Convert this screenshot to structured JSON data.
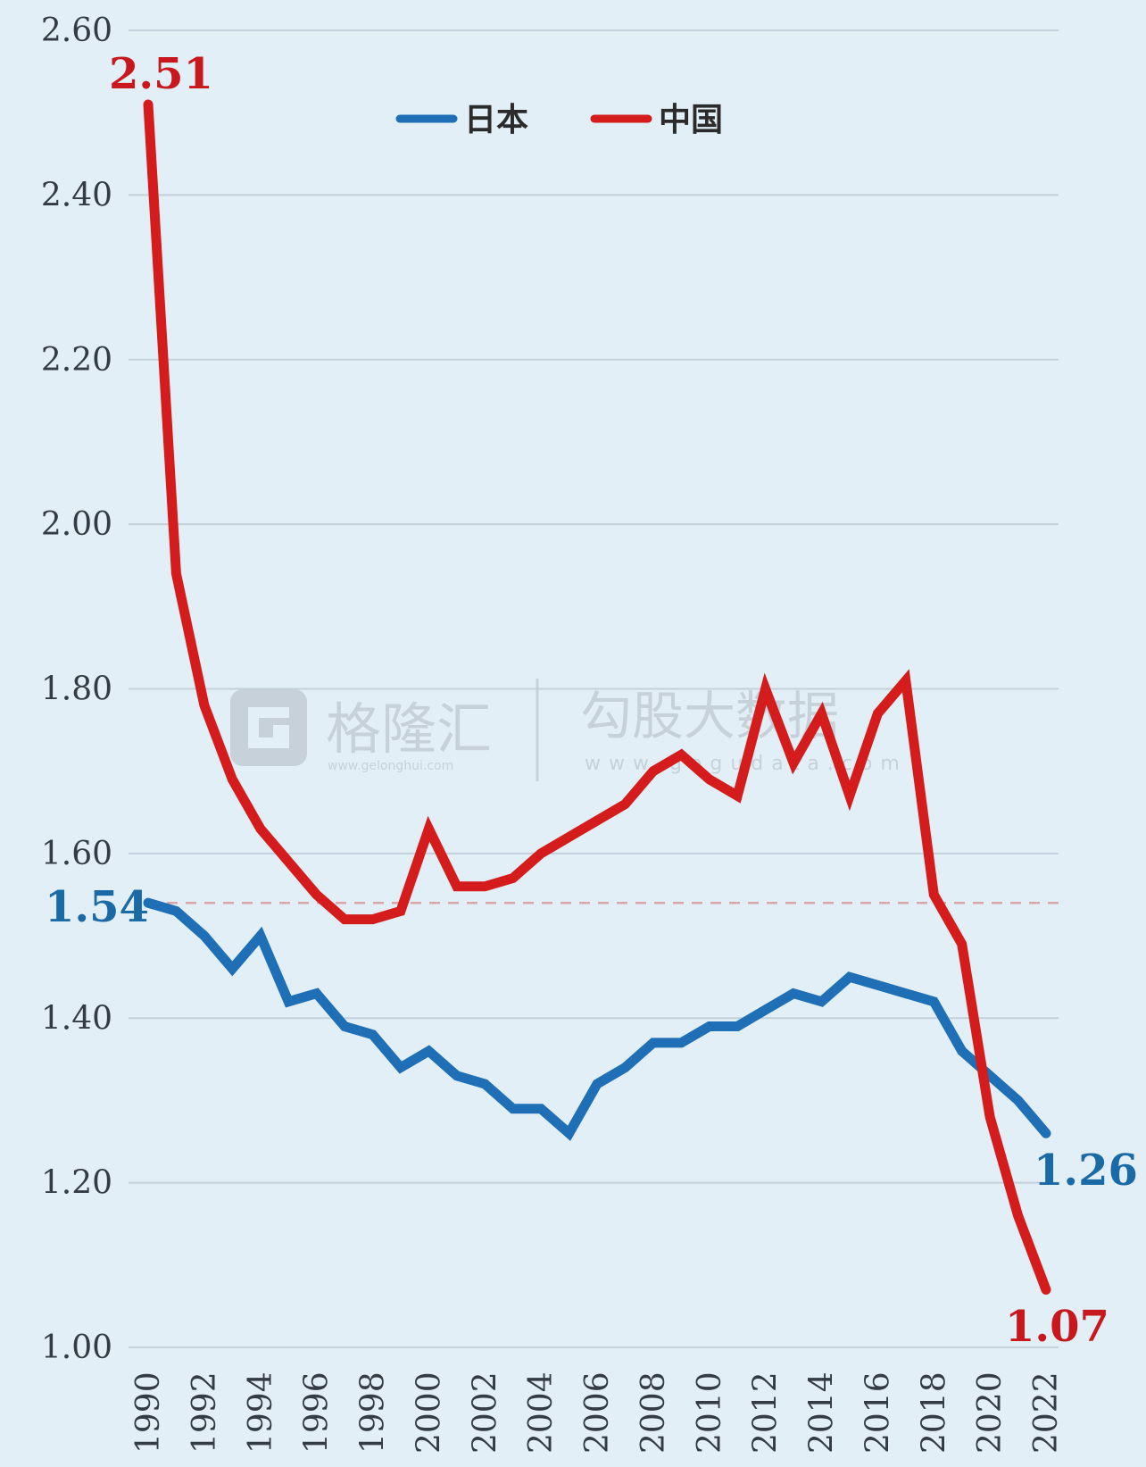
{
  "chart_data": {
    "type": "line",
    "x": [
      1990,
      1991,
      1992,
      1993,
      1994,
      1995,
      1996,
      1997,
      1998,
      1999,
      2000,
      2001,
      2002,
      2003,
      2004,
      2005,
      2006,
      2007,
      2008,
      2009,
      2010,
      2011,
      2012,
      2013,
      2014,
      2015,
      2016,
      2017,
      2018,
      2019,
      2020,
      2021,
      2022
    ],
    "x_tick_labels": [
      "1990",
      "1992",
      "1994",
      "1996",
      "1998",
      "2000",
      "2002",
      "2004",
      "2006",
      "2008",
      "2010",
      "2012",
      "2014",
      "2016",
      "2018",
      "2020",
      "2022"
    ],
    "ylim": [
      1.0,
      2.6
    ],
    "y_tick_labels": [
      "2.60",
      "2.40",
      "2.20",
      "2.00",
      "1.80",
      "1.60",
      "1.40",
      "1.20",
      "1.00"
    ],
    "grid": true,
    "legend_position": "top-center",
    "series": [
      {
        "name": "日本",
        "color": "#1e6fb5",
        "values": [
          1.54,
          1.53,
          1.5,
          1.46,
          1.5,
          1.42,
          1.43,
          1.39,
          1.38,
          1.34,
          1.36,
          1.33,
          1.32,
          1.29,
          1.29,
          1.26,
          1.32,
          1.34,
          1.37,
          1.37,
          1.39,
          1.39,
          1.41,
          1.43,
          1.42,
          1.45,
          1.44,
          1.43,
          1.42,
          1.36,
          1.33,
          1.3,
          1.26
        ]
      },
      {
        "name": "中国",
        "color": "#d51c1c",
        "values": [
          2.51,
          1.94,
          1.78,
          1.69,
          1.63,
          1.59,
          1.55,
          1.52,
          1.52,
          1.53,
          1.63,
          1.56,
          1.56,
          1.57,
          1.6,
          1.62,
          1.64,
          1.66,
          1.7,
          1.72,
          1.69,
          1.67,
          1.8,
          1.71,
          1.77,
          1.67,
          1.77,
          1.81,
          1.55,
          1.49,
          1.28,
          1.16,
          1.07
        ]
      }
    ],
    "reference_line": {
      "value": 1.54,
      "style": "dashed",
      "color": "#d9a5a8"
    },
    "annotations": [
      {
        "text": "2.51",
        "series": "中国",
        "year": 1990,
        "color": "#c8171d"
      },
      {
        "text": "1.54",
        "series": "日本",
        "year": 1990,
        "color": "#1a6aa6"
      },
      {
        "text": "1.26",
        "series": "日本",
        "year": 2022,
        "color": "#1a6aa6"
      },
      {
        "text": "1.07",
        "series": "中国",
        "year": 2022,
        "color": "#c8171d"
      }
    ]
  },
  "watermark": {
    "brand": "格隆汇",
    "brand_url": "www.gelonghui.com",
    "app": "勾股大数据",
    "app_url": "www.gogudata.com"
  }
}
